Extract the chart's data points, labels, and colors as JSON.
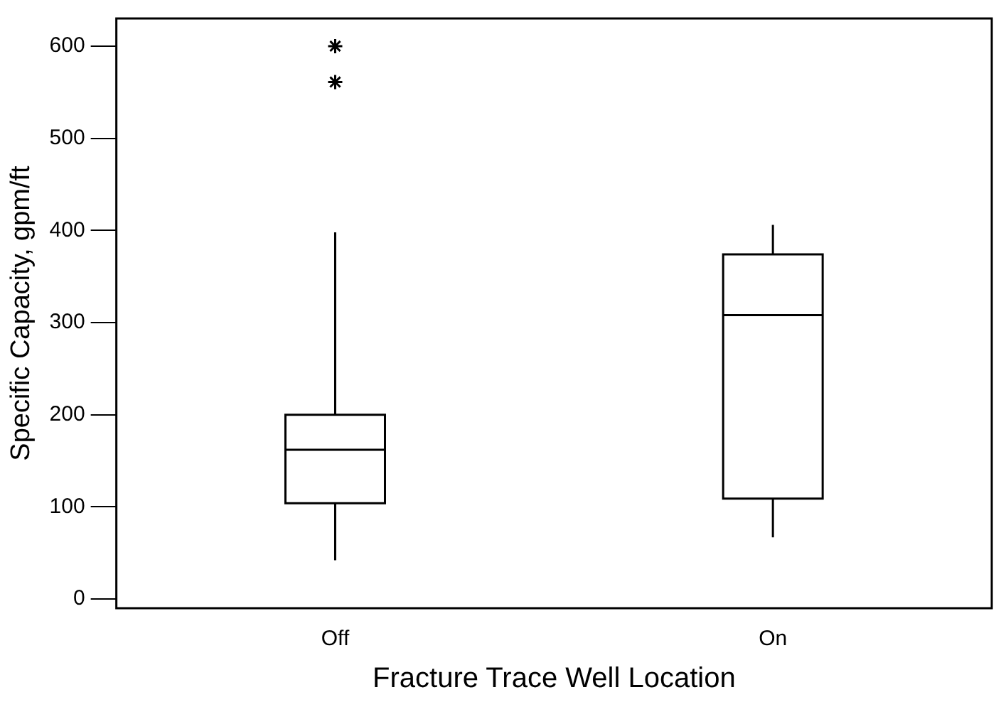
{
  "chart_data": {
    "type": "box",
    "xlabel": "Fracture Trace Well Location",
    "ylabel": "Specific Capacity, gpm/ft",
    "categories": [
      "Off",
      "On"
    ],
    "boxes": [
      {
        "low": 42,
        "q1": 104,
        "median": 162,
        "q3": 200,
        "high": 398,
        "outliers": [
          561,
          600
        ]
      },
      {
        "low": 67,
        "q1": 109,
        "median": 308,
        "q3": 374,
        "high": 406
      }
    ],
    "color": "#000000",
    "ylim": [
      -10,
      630
    ],
    "yticks": [
      0,
      100,
      200,
      300,
      400,
      500,
      600
    ],
    "grid": false,
    "legend": false
  }
}
